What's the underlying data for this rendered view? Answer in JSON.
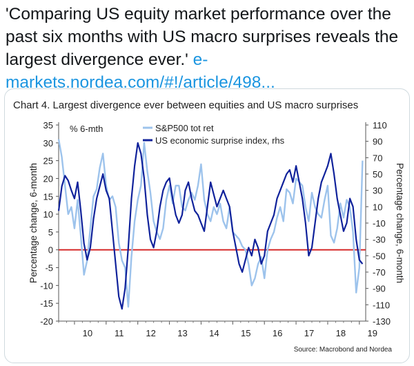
{
  "tweet": {
    "text": "'Comparing US equity market performance over the past six months with US macro surprises reveals the largest divergence ever.'",
    "link": "e-markets.nordea.com/#!/article/498..."
  },
  "colors": {
    "link": "#1b95e0",
    "series_a": "#9dc3ec",
    "series_b": "#10229b",
    "zero_line": "#d62a2a",
    "text": "#14171a"
  },
  "chart_data": {
    "type": "line",
    "title": "Chart 4. Largest divergence ever between equities and US macro surprises",
    "inner_label": "% 6-mth",
    "ylabel": "Percentage change, 6-month",
    "y2label": "Percentage change, 6-month",
    "source": "Source: Macrobond and Nordea",
    "ylim": [
      -20,
      35
    ],
    "y2lim": [
      -130,
      110
    ],
    "yticks": [
      35,
      30,
      25,
      20,
      15,
      10,
      5,
      0,
      -5,
      -10,
      -15,
      -20
    ],
    "y2ticks": [
      110,
      90,
      70,
      50,
      30,
      10,
      -10,
      -30,
      -50,
      -70,
      -90,
      -110,
      -130
    ],
    "xlim": [
      2009.5,
      2019.2
    ],
    "xticks": [
      "10",
      "11",
      "12",
      "13",
      "14",
      "15",
      "16",
      "17",
      "18",
      "19"
    ],
    "legend_position": "top-center",
    "series": [
      {
        "name": "S&P500 tot ret",
        "axis": "left",
        "x": [
          2009.5,
          2009.6,
          2009.7,
          2009.8,
          2009.9,
          2010.0,
          2010.1,
          2010.2,
          2010.3,
          2010.4,
          2010.5,
          2010.6,
          2010.7,
          2010.8,
          2010.9,
          2011.0,
          2011.1,
          2011.2,
          2011.3,
          2011.4,
          2011.5,
          2011.6,
          2011.7,
          2011.8,
          2011.9,
          2012.0,
          2012.1,
          2012.2,
          2012.3,
          2012.4,
          2012.5,
          2012.6,
          2012.7,
          2012.8,
          2012.9,
          2013.0,
          2013.1,
          2013.2,
          2013.3,
          2013.4,
          2013.5,
          2013.6,
          2013.7,
          2013.8,
          2013.9,
          2014.0,
          2014.1,
          2014.2,
          2014.3,
          2014.4,
          2014.5,
          2014.6,
          2014.7,
          2014.8,
          2014.9,
          2015.0,
          2015.1,
          2015.2,
          2015.3,
          2015.4,
          2015.5,
          2015.6,
          2015.7,
          2015.8,
          2015.9,
          2016.0,
          2016.1,
          2016.2,
          2016.3,
          2016.4,
          2016.5,
          2016.6,
          2016.7,
          2016.8,
          2016.9,
          2017.0,
          2017.1,
          2017.2,
          2017.3,
          2017.4,
          2017.5,
          2017.6,
          2017.7,
          2017.8,
          2017.9,
          2018.0,
          2018.1,
          2018.2,
          2018.3,
          2018.4,
          2018.5,
          2018.6,
          2018.7,
          2018.8,
          2018.9,
          2019.0,
          2019.1
        ],
        "y": [
          31,
          26,
          18,
          10,
          12,
          6,
          14,
          4,
          -7,
          -3,
          6,
          15,
          17,
          23,
          27,
          18,
          14,
          15,
          12,
          2,
          -3,
          -5,
          -16,
          -2,
          8,
          14,
          18,
          30,
          22,
          16,
          8,
          5,
          3,
          6,
          14,
          18,
          13,
          18,
          18,
          12,
          11,
          14,
          16,
          14,
          18,
          24,
          14,
          10,
          8,
          12,
          10,
          13,
          8,
          6,
          12,
          5,
          4,
          3,
          1,
          0,
          -4,
          -10,
          -8,
          -4,
          -2,
          -8,
          0,
          3,
          5,
          9,
          12,
          8,
          17,
          16,
          13,
          20,
          19,
          18,
          12,
          8,
          16,
          12,
          10,
          9,
          14,
          18,
          4,
          2,
          6,
          13,
          9,
          14,
          12,
          5,
          -12,
          -5,
          25
        ]
      },
      {
        "name": "US economic surprise index, rhs",
        "axis": "right",
        "x": [
          2009.5,
          2009.6,
          2009.7,
          2009.8,
          2009.9,
          2010.0,
          2010.1,
          2010.2,
          2010.3,
          2010.4,
          2010.5,
          2010.6,
          2010.7,
          2010.8,
          2010.9,
          2011.0,
          2011.1,
          2011.2,
          2011.3,
          2011.4,
          2011.5,
          2011.6,
          2011.7,
          2011.8,
          2011.9,
          2012.0,
          2012.1,
          2012.2,
          2012.3,
          2012.4,
          2012.5,
          2012.6,
          2012.7,
          2012.8,
          2012.9,
          2013.0,
          2013.1,
          2013.2,
          2013.3,
          2013.4,
          2013.5,
          2013.6,
          2013.7,
          2013.8,
          2013.9,
          2014.0,
          2014.1,
          2014.2,
          2014.3,
          2014.4,
          2014.5,
          2014.6,
          2014.7,
          2014.8,
          2014.9,
          2015.0,
          2015.1,
          2015.2,
          2015.3,
          2015.4,
          2015.5,
          2015.6,
          2015.7,
          2015.8,
          2015.9,
          2016.0,
          2016.1,
          2016.2,
          2016.3,
          2016.4,
          2016.5,
          2016.6,
          2016.7,
          2016.8,
          2016.9,
          2017.0,
          2017.1,
          2017.2,
          2017.3,
          2017.4,
          2017.5,
          2017.6,
          2017.7,
          2017.8,
          2017.9,
          2018.0,
          2018.1,
          2018.2,
          2018.3,
          2018.4,
          2018.5,
          2018.6,
          2018.7,
          2018.8,
          2018.9,
          2019.0,
          2019.1
        ],
        "y": [
          5,
          35,
          48,
          42,
          30,
          20,
          40,
          5,
          -35,
          -55,
          -40,
          -5,
          20,
          35,
          50,
          30,
          20,
          -20,
          -60,
          -100,
          -115,
          -90,
          -40,
          20,
          60,
          88,
          75,
          45,
          0,
          -30,
          -40,
          -20,
          10,
          30,
          40,
          45,
          20,
          0,
          -10,
          0,
          30,
          40,
          20,
          5,
          0,
          -10,
          -20,
          10,
          40,
          25,
          10,
          20,
          30,
          20,
          10,
          -20,
          -40,
          -60,
          -70,
          -55,
          -40,
          -50,
          -30,
          -40,
          -60,
          -50,
          -20,
          -10,
          0,
          20,
          30,
          40,
          50,
          55,
          40,
          60,
          40,
          20,
          -10,
          -50,
          -40,
          -10,
          20,
          40,
          50,
          60,
          75,
          50,
          20,
          0,
          -20,
          -10,
          20,
          10,
          -30,
          -55,
          -60
        ]
      }
    ]
  }
}
